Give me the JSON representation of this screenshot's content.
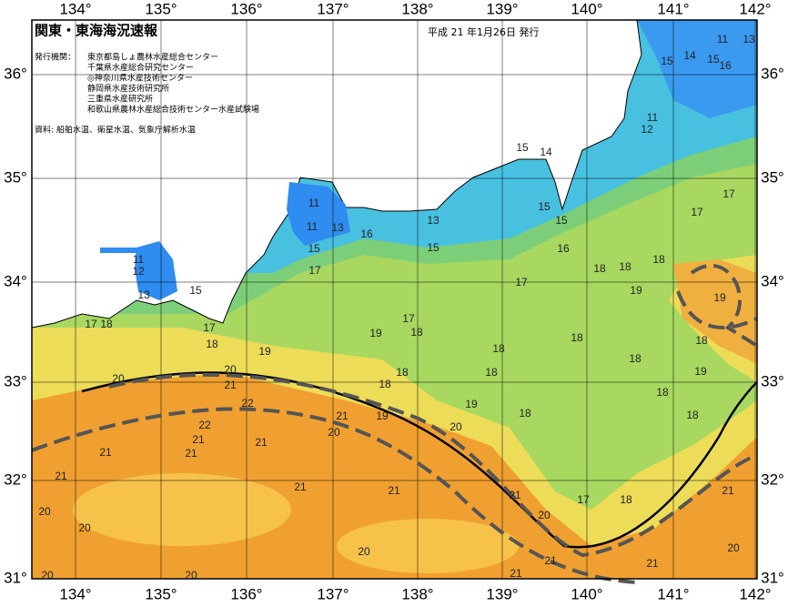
{
  "header": {
    "title": "関東・東海海況速報",
    "date": "平成 21 年1月26日 発行"
  },
  "issuer": {
    "label": "発行機関：",
    "items": [
      "東京都島しょ農林水産総合センター",
      "千葉県水産総合研究センター",
      "◎神奈川県水産技術センター",
      "静岡県水産技術研究所",
      "三重県水産研究所",
      "和歌山県農林水産総合技術センター水産試験場"
    ]
  },
  "source": "資料: 船舶水温、衛星水温、気象庁解析水温",
  "lon_labels": [
    "134°",
    "135°",
    "136°",
    "137°",
    "138°",
    "139°",
    "140°",
    "141°",
    "142°"
  ],
  "lat_labels": [
    "36°",
    "35°",
    "34°",
    "33°",
    "32°",
    "31°"
  ],
  "contour_labels": [
    "11",
    "13",
    "15",
    "14",
    "15",
    "16",
    "11",
    "12",
    "15",
    "14",
    "15",
    "15",
    "16",
    "13",
    "16",
    "15",
    "11",
    "11",
    "13",
    "15",
    "17",
    "11",
    "12",
    "13",
    "15",
    "17",
    "18",
    "17",
    "18",
    "19",
    "17",
    "19",
    "18",
    "17",
    "18",
    "18",
    "18",
    "19",
    "19",
    "17",
    "17",
    "18",
    "18",
    "18",
    "18",
    "18",
    "18",
    "18",
    "19",
    "18",
    "18",
    "18",
    "19",
    "20",
    "20",
    "20",
    "21",
    "22",
    "21",
    "19",
    "22",
    "21",
    "21",
    "21",
    "20",
    "21",
    "21",
    "21",
    "21",
    "21",
    "20",
    "17",
    "18",
    "21",
    "20",
    "20",
    "20",
    "20",
    "21",
    "21",
    "21",
    "20",
    "20"
  ]
}
